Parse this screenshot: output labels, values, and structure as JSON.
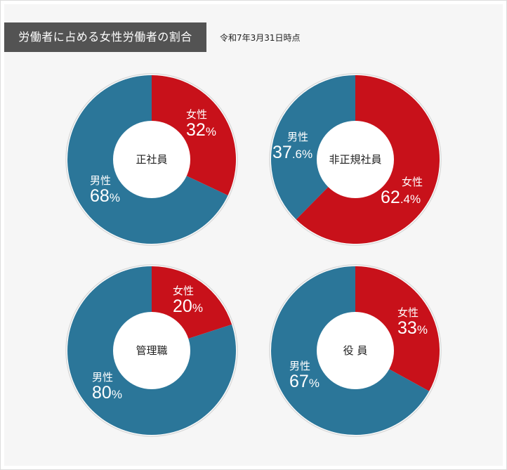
{
  "header": {
    "title": "労働者に占める女性労働者の割合",
    "as_of": "令和7年3月31日時点"
  },
  "colors": {
    "female": "#c8111a",
    "male": "#2b7699",
    "title_bar": "#535353",
    "panel": "#f6f6f6"
  },
  "charts": [
    {
      "name": "正社員",
      "female": {
        "label": "女性",
        "int": "32",
        "dec": "",
        "unit": "%"
      },
      "male": {
        "label": "男性",
        "int": "68",
        "dec": "",
        "unit": "%"
      }
    },
    {
      "name": "非正規社員",
      "female": {
        "label": "女性",
        "int": "62",
        "dec": ".4",
        "unit": "%"
      },
      "male": {
        "label": "男性",
        "int": "37",
        "dec": ".6",
        "unit": "%"
      }
    },
    {
      "name": "管理職",
      "female": {
        "label": "女性",
        "int": "20",
        "dec": "",
        "unit": "%"
      },
      "male": {
        "label": "男性",
        "int": "80",
        "dec": "",
        "unit": "%"
      }
    },
    {
      "name": "役 員",
      "female": {
        "label": "女性",
        "int": "33",
        "dec": "",
        "unit": "%"
      },
      "male": {
        "label": "男性",
        "int": "67",
        "dec": "",
        "unit": "%"
      }
    }
  ],
  "chart_data": [
    {
      "type": "pie",
      "title": "正社員",
      "categories": [
        "女性",
        "男性"
      ],
      "values": [
        32,
        68
      ],
      "colors": [
        "#c8111a",
        "#2b7699"
      ]
    },
    {
      "type": "pie",
      "title": "非正規社員",
      "categories": [
        "女性",
        "男性"
      ],
      "values": [
        62.4,
        37.6
      ],
      "colors": [
        "#c8111a",
        "#2b7699"
      ]
    },
    {
      "type": "pie",
      "title": "管理職",
      "categories": [
        "女性",
        "男性"
      ],
      "values": [
        20,
        80
      ],
      "colors": [
        "#c8111a",
        "#2b7699"
      ]
    },
    {
      "type": "pie",
      "title": "役員",
      "categories": [
        "女性",
        "男性"
      ],
      "values": [
        33,
        67
      ],
      "colors": [
        "#c8111a",
        "#2b7699"
      ]
    }
  ]
}
